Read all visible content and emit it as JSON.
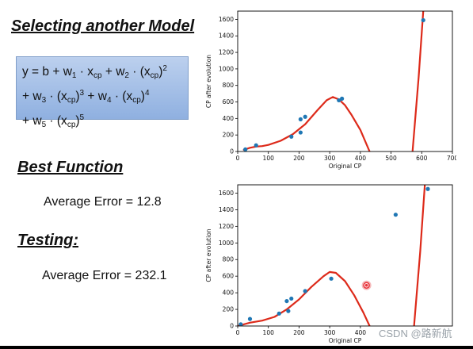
{
  "headings": {
    "select": "Selecting another Model",
    "best": "Best Function",
    "test": "Testing:"
  },
  "formula": {
    "line1": {
      "y": "y = b + w",
      "s1": "1",
      "mid1": " · x",
      "cp1": "cp",
      "mid2": " + w",
      "s2": "2",
      "mid3": " · (x",
      "cp2": "cp",
      "close": ")",
      "p2": "2"
    },
    "line2": {
      "pre": "+ w",
      "s3": "3",
      "mid1": " · (x",
      "cp1": "cp",
      "close1": ")",
      "p3": "3",
      "mid2": " + w",
      "s4": "4",
      "mid3": " · (x",
      "cp2": "cp",
      "close2": ")",
      "p4": "4"
    },
    "line3": {
      "pre": "+ w",
      "s5": "5",
      "mid": " · (x",
      "cp": "cp",
      "close": ")",
      "p5": "5"
    }
  },
  "errors": {
    "best": "Average Error = 12.8",
    "test": "Average Error = 232.1"
  },
  "watermark": "CSDN @路新航",
  "colors": {
    "curve": "#dd2a1a",
    "point": "#1f77b4",
    "highlight": "#e8333a"
  },
  "chart_data": [
    {
      "type": "scatter",
      "title": "",
      "xlabel": "Original CP",
      "ylabel": "CP after evolution",
      "xlim": [
        0,
        700
      ],
      "ylim": [
        0,
        1700
      ],
      "xticks": [
        0,
        100,
        200,
        300,
        400,
        500,
        600,
        700
      ],
      "yticks": [
        0,
        200,
        400,
        600,
        800,
        1000,
        1200,
        1400,
        1600
      ],
      "points": [
        [
          25,
          25
        ],
        [
          60,
          75
        ],
        [
          175,
          180
        ],
        [
          205,
          390
        ],
        [
          205,
          230
        ],
        [
          220,
          420
        ],
        [
          330,
          620
        ],
        [
          340,
          640
        ],
        [
          605,
          1590
        ]
      ],
      "curve": [
        [
          20,
          20
        ],
        [
          40,
          45
        ],
        [
          60,
          60
        ],
        [
          80,
          65
        ],
        [
          100,
          80
        ],
        [
          140,
          130
        ],
        [
          180,
          210
        ],
        [
          220,
          330
        ],
        [
          260,
          500
        ],
        [
          290,
          620
        ],
        [
          310,
          660
        ],
        [
          330,
          630
        ],
        [
          350,
          560
        ],
        [
          370,
          450
        ],
        [
          400,
          260
        ],
        [
          430,
          0
        ]
      ],
      "curve2": [
        [
          570,
          0
        ],
        [
          590,
          900
        ],
        [
          605,
          1700
        ]
      ]
    },
    {
      "type": "scatter",
      "title": "",
      "xlabel": "Original CP",
      "ylabel": "CP after evolution",
      "xlim": [
        0,
        700
      ],
      "ylim": [
        0,
        1700
      ],
      "xticks": [
        0,
        100,
        200,
        300,
        400
      ],
      "yticks": [
        0,
        200,
        400,
        600,
        800,
        1000,
        1200,
        1400,
        1600
      ],
      "points": [
        [
          10,
          20
        ],
        [
          40,
          85
        ],
        [
          135,
          150
        ],
        [
          165,
          180
        ],
        [
          160,
          300
        ],
        [
          175,
          330
        ],
        [
          220,
          420
        ],
        [
          305,
          570
        ],
        [
          420,
          490
        ],
        [
          515,
          1340
        ],
        [
          620,
          1650
        ]
      ],
      "highlight_point": [
        420,
        490
      ],
      "curve": [
        [
          0,
          0
        ],
        [
          40,
          40
        ],
        [
          80,
          65
        ],
        [
          120,
          110
        ],
        [
          160,
          200
        ],
        [
          200,
          320
        ],
        [
          240,
          470
        ],
        [
          280,
          600
        ],
        [
          300,
          650
        ],
        [
          320,
          640
        ],
        [
          350,
          540
        ],
        [
          380,
          370
        ],
        [
          410,
          160
        ],
        [
          430,
          0
        ]
      ],
      "curve2": [
        [
          575,
          0
        ],
        [
          595,
          900
        ],
        [
          610,
          1700
        ]
      ]
    }
  ]
}
